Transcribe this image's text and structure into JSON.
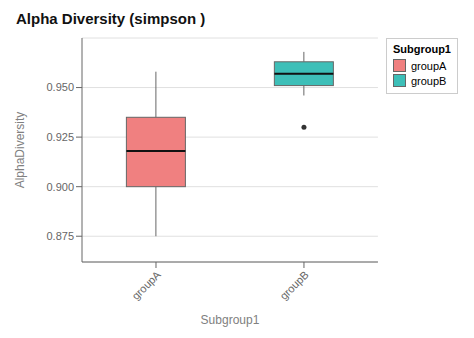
{
  "chart_data": {
    "type": "box",
    "title": "Alpha Diversity (simpson )",
    "xlabel": "Subgroup1",
    "ylabel": "AlphaDiversity",
    "categories": [
      "groupA",
      "groupB"
    ],
    "series": [
      {
        "name": "groupA",
        "color": "#F08080",
        "median": 0.918,
        "q1": 0.9,
        "q3": 0.935,
        "whisker_low": 0.875,
        "whisker_high": 0.958,
        "outliers": []
      },
      {
        "name": "groupB",
        "color": "#3DBFB8",
        "median": 0.957,
        "q1": 0.951,
        "q3": 0.963,
        "whisker_low": 0.946,
        "whisker_high": 0.968,
        "outliers": [
          0.93
        ]
      }
    ],
    "ylim": [
      0.862,
      0.975
    ],
    "yticks": [
      0.875,
      {
        "value": 0.9,
        "label": "0.900"
      },
      0.925,
      {
        "value": 0.95,
        "label": "0.950"
      }
    ],
    "grid": true,
    "legend": "upper right",
    "legend_title": "Subgroup1"
  }
}
